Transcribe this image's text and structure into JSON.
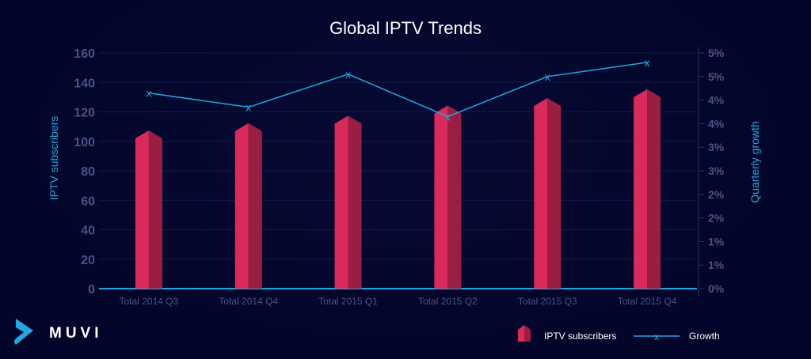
{
  "chart_data": {
    "type": "bar",
    "title": "Global IPTV Trends",
    "categories": [
      "Total 2014 Q3",
      "Total 2014 Q4",
      "Total 2015 Q1",
      "Total 2015 Q2",
      "Total 2015 Q3",
      "Total 2015 Q4"
    ],
    "series": [
      {
        "name": "IPTV subscribers",
        "type": "bar",
        "axis": "left",
        "values": [
          102,
          107,
          112,
          119,
          124,
          130
        ]
      },
      {
        "name": "Growth",
        "type": "line",
        "axis": "right",
        "values": [
          4.15,
          3.85,
          4.55,
          3.65,
          4.5,
          4.8
        ]
      }
    ],
    "ylabel": "IPTV subscribers",
    "ylim": [
      0,
      160
    ],
    "yticks": [
      "0",
      "20",
      "40",
      "60",
      "80",
      "100",
      "120",
      "140",
      "160"
    ],
    "y2label": "Quarterly growth",
    "y2lim": [
      0,
      5
    ],
    "y2ticks": [
      "0%",
      "1%",
      "1%",
      "2%",
      "2%",
      "3%",
      "3%",
      "4%",
      "4%",
      "5%",
      "5%"
    ],
    "grid": true,
    "legend": "bottom-right",
    "colors": {
      "bar_front": "#d92a5b",
      "bar_side": "#9a1e42",
      "line": "#1fa9e0",
      "axis_text": "#4a5285",
      "background": "#03062a"
    }
  },
  "brand": {
    "name": "MUVI"
  }
}
